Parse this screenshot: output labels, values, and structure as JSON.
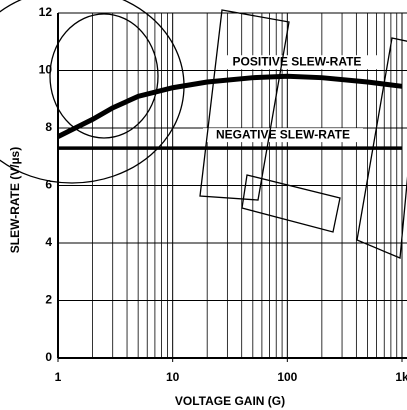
{
  "chart_data": {
    "type": "line",
    "xlabel": "VOLTAGE GAIN (G)",
    "ylabel": "SLEW-RATE (V/µs)",
    "xscale": "log",
    "xlim": [
      1,
      1000
    ],
    "ylim": [
      0,
      12
    ],
    "xticks": [
      1,
      10,
      100,
      {
        "value": 1000,
        "label": "1k"
      }
    ],
    "yticks": [
      0,
      2,
      4,
      6,
      8,
      10,
      12
    ],
    "grid": true,
    "x": [
      1,
      2,
      3,
      5,
      10,
      20,
      50,
      100,
      200,
      500,
      1000
    ],
    "series": [
      {
        "name": "POSITIVE SLEW-RATE",
        "color": "#000000",
        "values": [
          7.7,
          8.3,
          8.7,
          9.1,
          9.4,
          9.6,
          9.75,
          9.8,
          9.75,
          9.6,
          9.45
        ]
      },
      {
        "name": "NEGATIVE SLEW-RATE",
        "color": "#000000",
        "values": [
          7.3,
          7.3,
          7.3,
          7.3,
          7.3,
          7.3,
          7.3,
          7.3,
          7.3,
          7.3,
          7.3
        ]
      }
    ]
  }
}
